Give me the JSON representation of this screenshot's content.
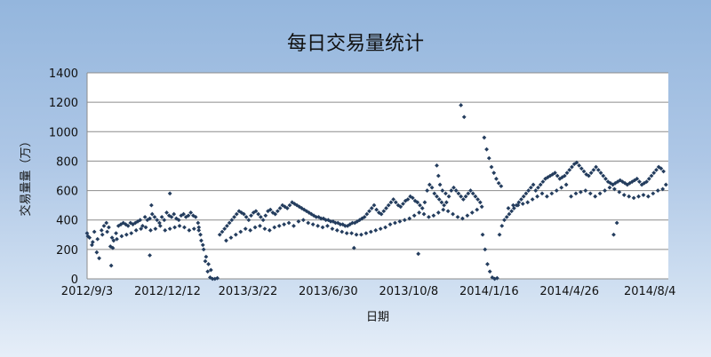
{
  "colors": {
    "background_top": "#94b6dd",
    "background_bottom": "#e6eef8",
    "plot_area": "#ffffff",
    "gridline": "#8c8c8c",
    "marker": "#243d5e"
  },
  "chart_data": {
    "type": "scatter",
    "title": "每日交易量统计",
    "xlabel": "日期",
    "ylabel": "交易量量（万）",
    "ylim": [
      0,
      1400
    ],
    "yticks": [
      0,
      200,
      400,
      600,
      800,
      1000,
      1200,
      1400
    ],
    "ytick_labels": [
      "0",
      "200",
      "400",
      "600",
      "800",
      "1000",
      "1200",
      "1400"
    ],
    "xlim": [
      "2012-09-03",
      "2014-08-27"
    ],
    "xtick_labels": [
      "2012/9/3",
      "2012/12/12",
      "2013/3/22",
      "2013/6/30",
      "2013/10/8",
      "2014/1/16",
      "2014/4/26",
      "2014/8/4"
    ],
    "xtick_dates": [
      "2012-09-03",
      "2012-12-12",
      "2013-03-22",
      "2013-06-30",
      "2013-10-08",
      "2014-01-16",
      "2014-04-26",
      "2014-08-04"
    ],
    "grid": true,
    "legend": "none",
    "marker": "diamond",
    "series": [
      {
        "name": "",
        "x": [
          "2012-09-03",
          "2012-09-06",
          "2012-09-09",
          "2012-09-12",
          "2012-09-15",
          "2012-09-18",
          "2012-09-21",
          "2012-09-24",
          "2012-09-27",
          "2012-09-30",
          "2012-10-03",
          "2012-10-06",
          "2012-10-09",
          "2012-10-12",
          "2012-10-15",
          "2012-10-18",
          "2012-10-21",
          "2012-10-24",
          "2012-10-27",
          "2012-10-30",
          "2012-11-02",
          "2012-11-05",
          "2012-11-08",
          "2012-11-11",
          "2012-11-14",
          "2012-11-17",
          "2012-11-20",
          "2012-11-23",
          "2012-11-26",
          "2012-11-29",
          "2012-12-02",
          "2012-12-05",
          "2012-12-08",
          "2012-12-11",
          "2012-12-14",
          "2012-12-17",
          "2012-12-20",
          "2012-12-23",
          "2012-12-26",
          "2012-12-29",
          "2013-01-01",
          "2013-01-04",
          "2013-01-07",
          "2013-01-10",
          "2013-01-13",
          "2013-01-16",
          "2013-01-19",
          "2013-01-22",
          "2013-01-25",
          "2013-01-28",
          "2013-01-31",
          "2013-02-03",
          "2013-02-06",
          "2013-02-09",
          "2013-02-12",
          "2013-02-15",
          "2013-02-18",
          "2013-02-21",
          "2013-02-24",
          "2013-02-27",
          "2013-03-02",
          "2013-03-05",
          "2013-03-08",
          "2013-03-11",
          "2013-03-14",
          "2013-03-17",
          "2013-03-20",
          "2013-03-23",
          "2013-03-26",
          "2013-03-29",
          "2013-04-01",
          "2013-04-04",
          "2013-04-07",
          "2013-04-10",
          "2013-04-13",
          "2013-04-16",
          "2013-04-19",
          "2013-04-22",
          "2013-04-25",
          "2013-04-28",
          "2013-05-01",
          "2013-05-04",
          "2013-05-07",
          "2013-05-10",
          "2013-05-13",
          "2013-05-16",
          "2013-05-19",
          "2013-05-22",
          "2013-05-25",
          "2013-05-28",
          "2013-05-31",
          "2013-06-03",
          "2013-06-06",
          "2013-06-09",
          "2013-06-12",
          "2013-06-15",
          "2013-06-18",
          "2013-06-21",
          "2013-06-24",
          "2013-06-27",
          "2013-06-30",
          "2013-07-03",
          "2013-07-06",
          "2013-07-09",
          "2013-07-12",
          "2013-07-15",
          "2013-07-18",
          "2013-07-21",
          "2013-07-24",
          "2013-07-27",
          "2013-07-30",
          "2013-08-02",
          "2013-08-05",
          "2013-08-08",
          "2013-08-11",
          "2013-08-14",
          "2013-08-17",
          "2013-08-20",
          "2013-08-23",
          "2013-08-26",
          "2013-08-29",
          "2013-09-01",
          "2013-09-04",
          "2013-09-07",
          "2013-09-10",
          "2013-09-13",
          "2013-09-16",
          "2013-09-19",
          "2013-09-22",
          "2013-09-25",
          "2013-09-28",
          "2013-10-01",
          "2013-10-04",
          "2013-10-07",
          "2013-10-10",
          "2013-10-13",
          "2013-10-16",
          "2013-10-19",
          "2013-10-22",
          "2013-10-25",
          "2013-10-28",
          "2013-10-31",
          "2013-11-03",
          "2013-11-06",
          "2013-11-09",
          "2013-11-12",
          "2013-11-15",
          "2013-11-18",
          "2013-11-21",
          "2013-11-24",
          "2013-11-27",
          "2013-11-30",
          "2013-12-03",
          "2013-12-06",
          "2013-12-09",
          "2013-12-12",
          "2013-12-15",
          "2013-12-18",
          "2013-12-21",
          "2013-12-24",
          "2013-12-27",
          "2013-12-30",
          "2014-01-02",
          "2014-01-05",
          "2014-01-08",
          "2014-01-11",
          "2014-01-14",
          "2014-01-17",
          "2014-01-20",
          "2014-01-23",
          "2014-01-26",
          "2014-01-29",
          "2014-02-01",
          "2014-02-04",
          "2014-02-07",
          "2014-02-10",
          "2014-02-13",
          "2014-02-16",
          "2014-02-19",
          "2014-02-22",
          "2014-02-25",
          "2014-02-28",
          "2014-03-03",
          "2014-03-06",
          "2014-03-09",
          "2014-03-12",
          "2014-03-15",
          "2014-03-18",
          "2014-03-21",
          "2014-03-24",
          "2014-03-27",
          "2014-03-30",
          "2014-04-02",
          "2014-04-05",
          "2014-04-08",
          "2014-04-11",
          "2014-04-14",
          "2014-04-17",
          "2014-04-20",
          "2014-04-23",
          "2014-04-26",
          "2014-04-29",
          "2014-05-02",
          "2014-05-05",
          "2014-05-08",
          "2014-05-11",
          "2014-05-14",
          "2014-05-17",
          "2014-05-20",
          "2014-05-23",
          "2014-05-26",
          "2014-05-29",
          "2014-06-01",
          "2014-06-04",
          "2014-06-07",
          "2014-06-10",
          "2014-06-13",
          "2014-06-16",
          "2014-06-19",
          "2014-06-22",
          "2014-06-25",
          "2014-06-28",
          "2014-07-01",
          "2014-07-04",
          "2014-07-07",
          "2014-07-10",
          "2014-07-13",
          "2014-07-16",
          "2014-07-19",
          "2014-07-22",
          "2014-07-25",
          "2014-07-28",
          "2014-07-31",
          "2014-08-03",
          "2014-08-06",
          "2014-08-09",
          "2014-08-12",
          "2014-08-15",
          "2014-08-18",
          "2014-08-21",
          "2014-08-24",
          "2012-09-04",
          "2012-09-10",
          "2012-09-16",
          "2012-09-22",
          "2012-09-28",
          "2012-10-04",
          "2012-10-10",
          "2012-10-16",
          "2012-10-22",
          "2012-10-28",
          "2012-11-03",
          "2012-11-09",
          "2012-11-15",
          "2012-11-21",
          "2012-11-27",
          "2012-12-03",
          "2012-12-09",
          "2012-12-15",
          "2012-12-21",
          "2012-12-27",
          "2013-01-02",
          "2013-01-08",
          "2013-01-14",
          "2013-01-20",
          "2013-02-23",
          "2013-03-01",
          "2013-03-07",
          "2013-03-13",
          "2013-03-19",
          "2013-03-25",
          "2013-03-31",
          "2013-04-06",
          "2013-04-12",
          "2013-04-18",
          "2013-04-24",
          "2013-04-30",
          "2013-05-06",
          "2013-05-12",
          "2013-05-18",
          "2013-05-24",
          "2013-05-30",
          "2013-06-05",
          "2013-06-11",
          "2013-06-17",
          "2013-06-23",
          "2013-06-29",
          "2013-07-05",
          "2013-07-11",
          "2013-07-17",
          "2013-07-23",
          "2013-07-29",
          "2013-08-04",
          "2013-08-10",
          "2013-08-16",
          "2013-08-22",
          "2013-08-28",
          "2013-09-03",
          "2013-09-09",
          "2013-09-15",
          "2013-09-21",
          "2013-09-27",
          "2013-10-03",
          "2013-10-09",
          "2013-10-15",
          "2013-10-21",
          "2013-10-27",
          "2013-11-02",
          "2013-11-08",
          "2013-11-14",
          "2013-11-20",
          "2013-11-26",
          "2013-12-02",
          "2013-12-08",
          "2013-12-14",
          "2013-12-20",
          "2013-12-26",
          "2014-01-01",
          "2014-01-07",
          "2014-02-09",
          "2014-02-15",
          "2014-02-21",
          "2014-02-27",
          "2014-03-05",
          "2014-03-11",
          "2014-03-17",
          "2014-03-23",
          "2014-03-29",
          "2014-04-04",
          "2014-04-10",
          "2014-04-16",
          "2014-04-22",
          "2014-04-28",
          "2014-05-04",
          "2014-05-10",
          "2014-05-16",
          "2014-05-22",
          "2014-05-28",
          "2014-06-03",
          "2014-06-09",
          "2014-06-15",
          "2014-06-21",
          "2014-06-27",
          "2014-07-03",
          "2014-07-09",
          "2014-07-15",
          "2014-07-21",
          "2014-07-27",
          "2014-08-02",
          "2014-08-08",
          "2014-08-14",
          "2014-08-20",
          "2012-11-20",
          "2012-11-22",
          "2012-12-15",
          "2013-01-20",
          "2013-01-23",
          "2013-01-26",
          "2013-01-29",
          "2013-02-01",
          "2013-02-04",
          "2013-11-12",
          "2013-11-14",
          "2013-11-16",
          "2013-11-19",
          "2013-11-23",
          "2013-12-12",
          "2013-12-16",
          "2014-01-10",
          "2014-01-13",
          "2014-01-16",
          "2014-01-19",
          "2014-01-22",
          "2014-01-25",
          "2014-01-28",
          "2014-01-31",
          "2012-10-02",
          "2012-10-05",
          "2013-08-01",
          "2013-10-20",
          "2014-06-20",
          "2014-06-24"
        ],
        "y": [
          310,
          280,
          230,
          320,
          180,
          140,
          330,
          360,
          380,
          350,
          90,
          260,
          310,
          360,
          370,
          380,
          370,
          360,
          380,
          370,
          380,
          390,
          400,
          360,
          420,
          400,
          410,
          440,
          420,
          400,
          380,
          420,
          400,
          450,
          430,
          420,
          440,
          410,
          400,
          430,
          440,
          420,
          430,
          450,
          430,
          420,
          380,
          300,
          230,
          120,
          50,
          10,
          0,
          0,
          5,
          300,
          320,
          340,
          360,
          380,
          400,
          420,
          440,
          460,
          450,
          440,
          420,
          400,
          430,
          450,
          460,
          440,
          420,
          400,
          430,
          460,
          470,
          450,
          440,
          460,
          480,
          500,
          490,
          480,
          500,
          520,
          510,
          500,
          490,
          480,
          470,
          460,
          450,
          440,
          430,
          420,
          420,
          410,
          410,
          400,
          400,
          390,
          390,
          380,
          380,
          370,
          370,
          360,
          360,
          370,
          380,
          380,
          390,
          400,
          410,
          420,
          440,
          460,
          480,
          500,
          470,
          450,
          440,
          460,
          480,
          500,
          520,
          540,
          520,
          500,
          490,
          510,
          530,
          540,
          560,
          550,
          530,
          520,
          500,
          480,
          520,
          600,
          640,
          620,
          580,
          560,
          540,
          520,
          500,
          520,
          560,
          600,
          620,
          600,
          580,
          560,
          540,
          560,
          580,
          600,
          580,
          560,
          540,
          520,
          300,
          200,
          100,
          50,
          10,
          0,
          5,
          300,
          360,
          400,
          420,
          440,
          460,
          480,
          500,
          520,
          540,
          560,
          580,
          600,
          620,
          640,
          600,
          620,
          640,
          660,
          680,
          690,
          700,
          710,
          720,
          700,
          680,
          690,
          700,
          720,
          740,
          760,
          780,
          790,
          770,
          750,
          730,
          710,
          700,
          720,
          740,
          760,
          740,
          720,
          700,
          680,
          660,
          650,
          640,
          650,
          660,
          670,
          660,
          650,
          640,
          650,
          660,
          670,
          680,
          660,
          640,
          650,
          660,
          680,
          700,
          720,
          740,
          760,
          750,
          730,
          640,
          290,
          250,
          270,
          300,
          320,
          280,
          270,
          290,
          300,
          310,
          330,
          340,
          350,
          330,
          340,
          360,
          330,
          340,
          350,
          360,
          350,
          330,
          340,
          350,
          260,
          280,
          300,
          320,
          340,
          330,
          350,
          360,
          340,
          330,
          350,
          360,
          370,
          380,
          360,
          390,
          400,
          380,
          370,
          360,
          350,
          360,
          340,
          330,
          320,
          310,
          310,
          300,
          300,
          310,
          320,
          330,
          340,
          350,
          370,
          380,
          390,
          400,
          410,
          430,
          450,
          440,
          420,
          430,
          450,
          470,
          460,
          440,
          420,
          410,
          430,
          450,
          470,
          490,
          480,
          500,
          500,
          510,
          520,
          540,
          560,
          580,
          560,
          580,
          600,
          620,
          640,
          560,
          580,
          590,
          600,
          580,
          560,
          580,
          600,
          620,
          610,
          590,
          570,
          560,
          550,
          560,
          570,
          560,
          580,
          600,
          610,
          160,
          500,
          580,
          330,
          260,
          200,
          150,
          100,
          60,
          770,
          700,
          640,
          600,
          580,
          1180,
          1100,
          960,
          880,
          820,
          760,
          720,
          680,
          650,
          630,
          220,
          210,
          210,
          170,
          300,
          380
        ]
      }
    ]
  }
}
